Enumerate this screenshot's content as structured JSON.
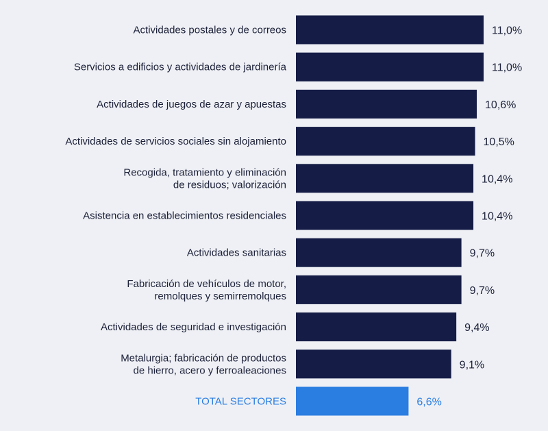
{
  "chart_data": {
    "type": "bar",
    "orientation": "horizontal",
    "title": "",
    "xlabel": "",
    "ylabel": "",
    "xlim": [
      0,
      11.0
    ],
    "grid": false,
    "categories": [
      [
        "Actividades postales y de correos"
      ],
      [
        "Servicios a edificios y actividades de jardinería"
      ],
      [
        "Actividades de juegos de azar y apuestas"
      ],
      [
        "Actividades de servicios sociales sin alojamiento"
      ],
      [
        "Recogida, tratamiento y eliminación",
        "de residuos; valorización"
      ],
      [
        "Asistencia en establecimientos residenciales"
      ],
      [
        "Actividades sanitarias"
      ],
      [
        "Fabricación de vehículos de motor,",
        "remolques y semirremolques"
      ],
      [
        "Actividades de seguridad e investigación"
      ],
      [
        "Metalurgia; fabricación de productos",
        "de hierro, acero y ferroaleaciones"
      ],
      [
        "TOTAL SECTORES"
      ]
    ],
    "values": [
      11.0,
      11.0,
      10.6,
      10.5,
      10.4,
      10.4,
      9.7,
      9.7,
      9.4,
      9.1,
      6.6
    ],
    "value_labels": [
      "11,0%",
      "11,0%",
      "10,6%",
      "10,5%",
      "10,4%",
      "10,4%",
      "9,7%",
      "9,7%",
      "9,4%",
      "9,1%",
      "6,6%"
    ],
    "highlight_index": 10,
    "colors": {
      "bar": "#151c45",
      "highlight_bar": "#2a7de1",
      "text": "#1c2038",
      "highlight_text": "#2a7de1",
      "background": "#eef0f5"
    }
  }
}
